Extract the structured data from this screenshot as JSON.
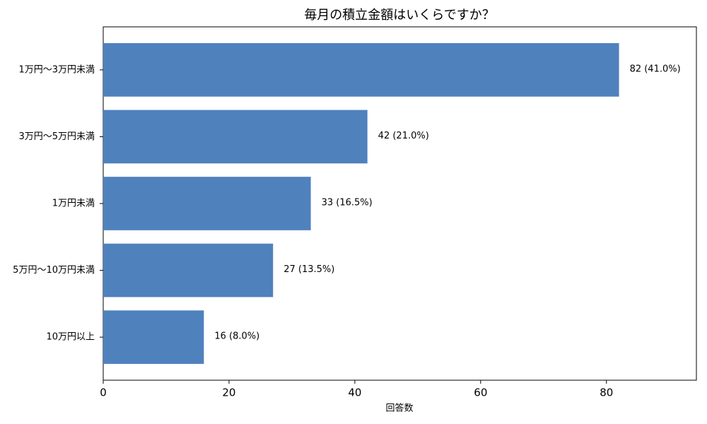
{
  "chart_data": {
    "type": "bar",
    "orientation": "horizontal",
    "title": "毎月の積立金額はいくらですか？",
    "x_label": "回答数",
    "categories": [
      "1万円〜3万円未満",
      "3万円〜5万円未満",
      "1万円未満",
      "5万円〜10万円未満",
      "10万円以上"
    ],
    "values": [
      82,
      42,
      33,
      27,
      16
    ],
    "value_labels": [
      "82 (41.0%)",
      "42 (21.0%)",
      "33 (16.5%)",
      "27 (13.5%)",
      "16 (8.0%)"
    ],
    "color": "#4f81bd",
    "xlim": [
      0,
      94.3
    ],
    "xticks": [
      0,
      20,
      40,
      60,
      80
    ],
    "grid": false
  }
}
